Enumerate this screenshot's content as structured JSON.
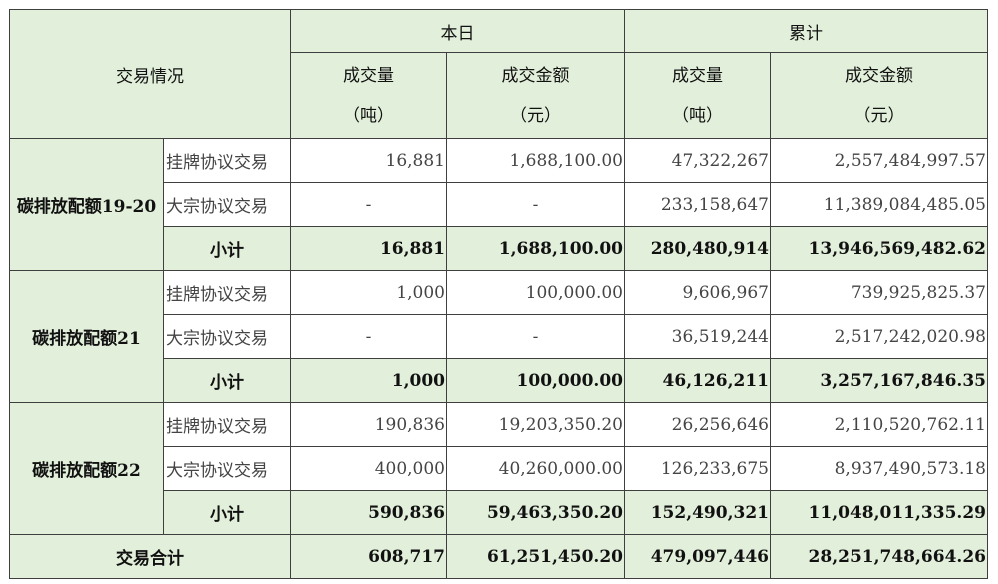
{
  "header": {
    "trade_situation": "交易情况",
    "today": "本日",
    "cumulative": "累计",
    "volume": "成交量",
    "volume_unit": "（吨）",
    "amount": "成交金额",
    "amount_unit": "（元）"
  },
  "groups": [
    {
      "product": "碳排放配额19-20",
      "rows": [
        {
          "type": "挂牌协议交易",
          "today_volume": "16,881",
          "today_amount": "1,688,100.00",
          "cum_volume": "47,322,267",
          "cum_amount": "2,557,484,997.57"
        },
        {
          "type": "大宗协议交易",
          "today_volume": "-",
          "today_amount": "-",
          "cum_volume": "233,158,647",
          "cum_amount": "11,389,084,485.05"
        }
      ],
      "subtotal": {
        "label": "小计",
        "today_volume": "16,881",
        "today_amount": "1,688,100.00",
        "cum_volume": "280,480,914",
        "cum_amount": "13,946,569,482.62"
      }
    },
    {
      "product": "碳排放配额21",
      "rows": [
        {
          "type": "挂牌协议交易",
          "today_volume": "1,000",
          "today_amount": "100,000.00",
          "cum_volume": "9,606,967",
          "cum_amount": "739,925,825.37"
        },
        {
          "type": "大宗协议交易",
          "today_volume": "-",
          "today_amount": "-",
          "cum_volume": "36,519,244",
          "cum_amount": "2,517,242,020.98"
        }
      ],
      "subtotal": {
        "label": "小计",
        "today_volume": "1,000",
        "today_amount": "100,000.00",
        "cum_volume": "46,126,211",
        "cum_amount": "3,257,167,846.35"
      }
    },
    {
      "product": "碳排放配额22",
      "rows": [
        {
          "type": "挂牌协议交易",
          "today_volume": "190,836",
          "today_amount": "19,203,350.20",
          "cum_volume": "26,256,646",
          "cum_amount": "2,110,520,762.11"
        },
        {
          "type": "大宗协议交易",
          "today_volume": "400,000",
          "today_amount": "40,260,000.00",
          "cum_volume": "126,233,675",
          "cum_amount": "8,937,490,573.18"
        }
      ],
      "subtotal": {
        "label": "小计",
        "today_volume": "590,836",
        "today_amount": "59,463,350.20",
        "cum_volume": "152,490,321",
        "cum_amount": "11,048,011,335.29"
      }
    }
  ],
  "total": {
    "label": "交易合计",
    "today_volume": "608,717",
    "today_amount": "61,251,450.20",
    "cum_volume": "479,097,446",
    "cum_amount": "28,251,748,664.26"
  },
  "colors": {
    "header_bg": "#e2efda",
    "border": "#3f3f3f"
  }
}
